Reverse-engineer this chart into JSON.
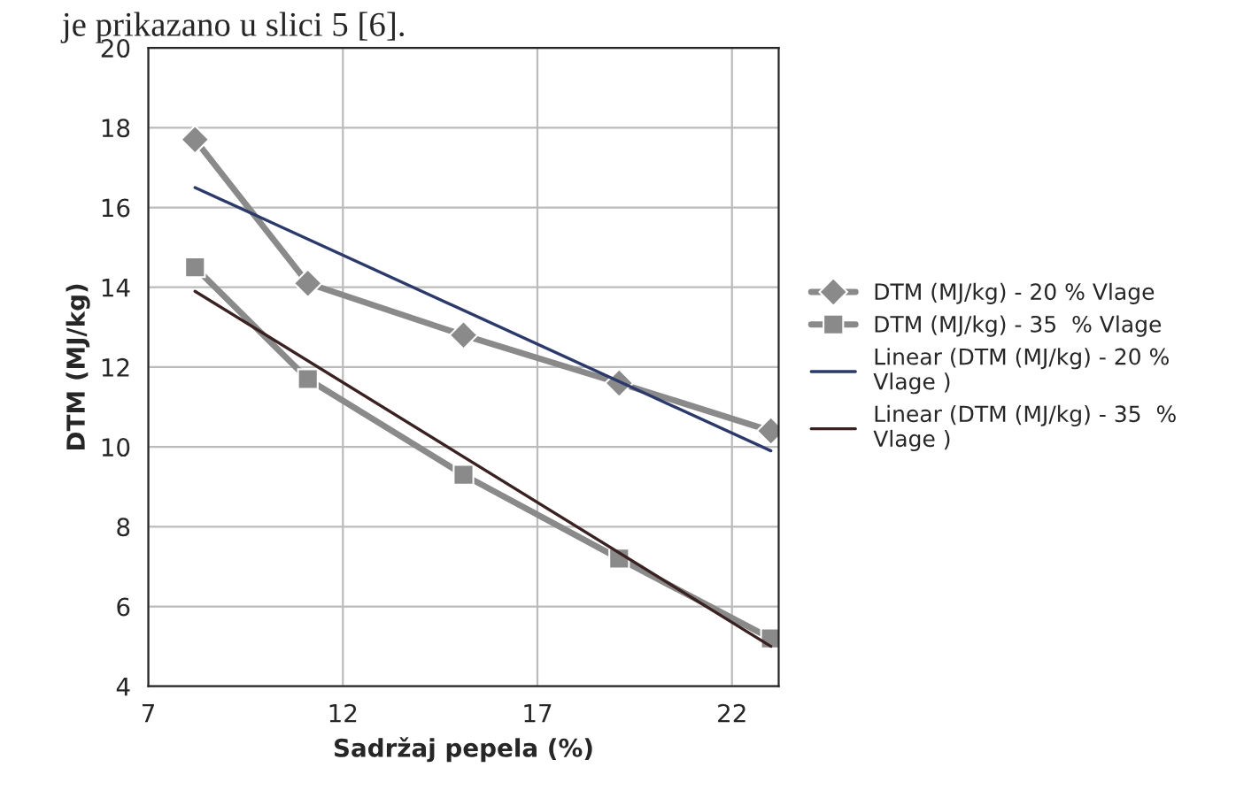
{
  "chart_data": {
    "type": "line",
    "xlabel": "Sadržaj pepela (%)",
    "ylabel": "DTM (MJ/kg)",
    "annotations": [
      "je prikazano u slici 5 [6]."
    ],
    "xlim": [
      7,
      23.2
    ],
    "xticks": [
      7,
      12,
      17,
      22
    ],
    "ylim": [
      4,
      20
    ],
    "yticks": [
      4,
      6,
      8,
      10,
      12,
      14,
      16,
      18,
      20
    ],
    "grid": true,
    "legend": "right",
    "series": [
      {
        "name": "DTM (MJ/kg) - 20 % Vlage",
        "color": "#8a8a8a",
        "marker": "diamond",
        "x": [
          8.2,
          11.1,
          15.1,
          19.1,
          23.0
        ],
        "values": [
          17.7,
          14.1,
          12.8,
          11.6,
          10.4
        ]
      },
      {
        "name": "DTM (MJ/kg) - 35  % Vlage",
        "color": "#8a8a8a",
        "marker": "square",
        "x": [
          8.2,
          11.1,
          15.1,
          19.1,
          23.0
        ],
        "values": [
          14.5,
          11.7,
          9.3,
          7.2,
          5.2
        ]
      },
      {
        "name": "Linear (DTM (MJ/kg) - 20 %\nVlage )",
        "color": "#2b3a6b",
        "marker": "none",
        "x": [
          8.2,
          23.0
        ],
        "values": [
          16.5,
          9.9
        ]
      },
      {
        "name": "Linear (DTM (MJ/kg) - 35  %\nVlage )",
        "color": "#3a2222",
        "marker": "none",
        "x": [
          8.2,
          23.0
        ],
        "values": [
          13.9,
          5.0
        ]
      }
    ]
  }
}
